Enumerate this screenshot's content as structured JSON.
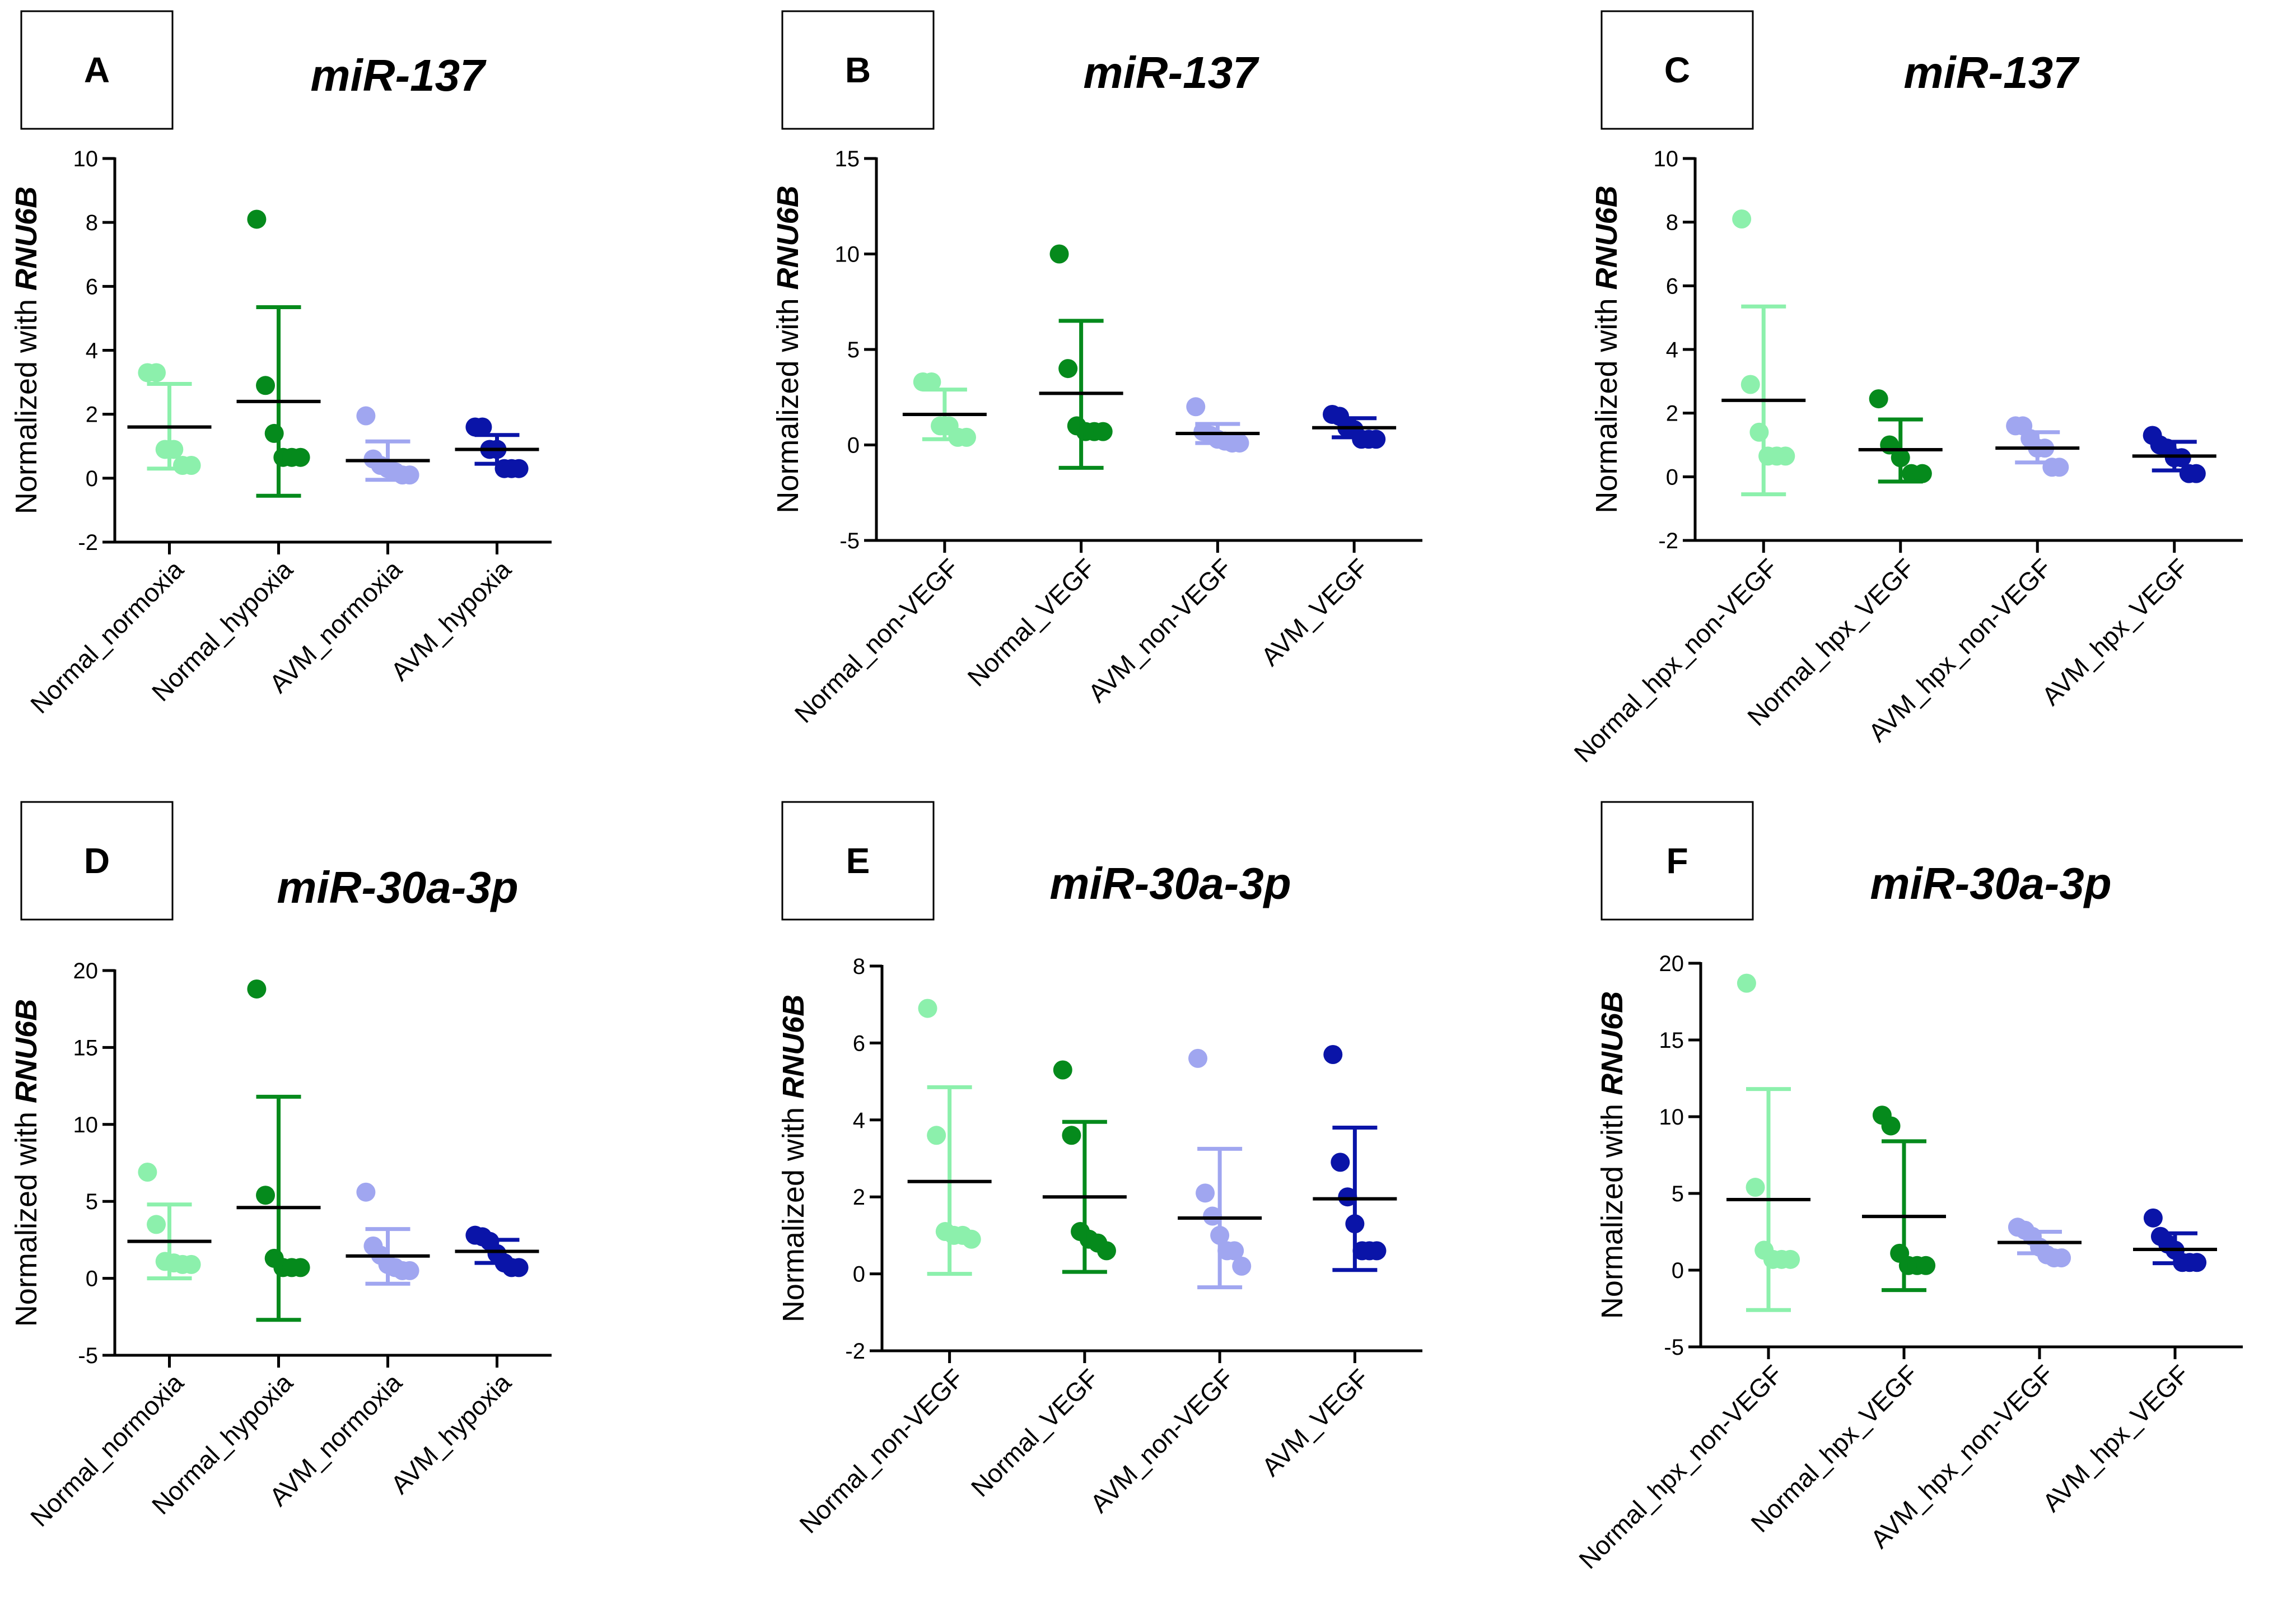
{
  "colors": {
    "normal_light": "#8cf0ac",
    "normal_dark": "#058a1c",
    "avm_light": "#a0a6f0",
    "avm_dark": "#0a14a8",
    "mean_line": "#000000",
    "axis": "#000000"
  },
  "chart_data": [
    {
      "id": "A",
      "type": "scatter",
      "panel_label": "A",
      "title": "miR-137",
      "ylabel_prefix": "Normalized with ",
      "ylabel_gene": "RNU6B",
      "ylim": [
        -2,
        10
      ],
      "yticks": [
        -2,
        0,
        2,
        4,
        6,
        8,
        10
      ],
      "categories": [
        "Normal_normoxia",
        "Normal_hypoxia",
        "AVM_normoxia",
        "AVM_hypoxia"
      ],
      "series": [
        {
          "name": "Normal_normoxia",
          "color": "#8cf0ac",
          "mean": 1.6,
          "sd_low": 0.3,
          "sd_high": 2.95,
          "points": [
            3.3,
            3.3,
            0.9,
            0.9,
            0.4,
            0.4
          ]
        },
        {
          "name": "Normal_hypoxia",
          "color": "#058a1c",
          "mean": 2.4,
          "sd_low": -0.55,
          "sd_high": 5.35,
          "points": [
            8.1,
            2.9,
            1.4,
            0.65,
            0.65,
            0.65
          ]
        },
        {
          "name": "AVM_normoxia",
          "color": "#a0a6f0",
          "mean": 0.55,
          "sd_low": -0.05,
          "sd_high": 1.15,
          "points": [
            1.95,
            0.6,
            0.4,
            0.3,
            0.2,
            0.1,
            0.1
          ]
        },
        {
          "name": "AVM_hypoxia",
          "color": "#0a14a8",
          "mean": 0.9,
          "sd_low": 0.45,
          "sd_high": 1.35,
          "points": [
            1.6,
            1.6,
            0.9,
            0.9,
            0.3,
            0.3,
            0.3
          ]
        }
      ]
    },
    {
      "id": "B",
      "type": "scatter",
      "panel_label": "B",
      "title": "miR-137",
      "ylabel_prefix": "Normalized with ",
      "ylabel_gene": "RNU6B",
      "ylim": [
        -5,
        15
      ],
      "yticks": [
        -5,
        0,
        5,
        10,
        15
      ],
      "categories": [
        "Normal_non-VEGF",
        "Normal_VEGF",
        "AVM_non-VEGF",
        "AVM_VEGF"
      ],
      "series": [
        {
          "name": "Normal_non-VEGF",
          "color": "#8cf0ac",
          "mean": 1.6,
          "sd_low": 0.3,
          "sd_high": 2.9,
          "points": [
            3.3,
            3.3,
            1.0,
            1.0,
            0.4,
            0.4
          ]
        },
        {
          "name": "Normal_VEGF",
          "color": "#058a1c",
          "mean": 2.7,
          "sd_low": -1.2,
          "sd_high": 6.5,
          "points": [
            10.0,
            4.0,
            1.0,
            0.7,
            0.7,
            0.7
          ]
        },
        {
          "name": "AVM_non-VEGF",
          "color": "#a0a6f0",
          "mean": 0.6,
          "sd_low": 0.1,
          "sd_high": 1.1,
          "points": [
            2.0,
            0.7,
            0.5,
            0.3,
            0.2,
            0.1,
            0.1
          ]
        },
        {
          "name": "AVM_VEGF",
          "color": "#0a14a8",
          "mean": 0.9,
          "sd_low": 0.4,
          "sd_high": 1.4,
          "points": [
            1.6,
            1.5,
            0.9,
            0.8,
            0.3,
            0.3,
            0.3
          ]
        }
      ]
    },
    {
      "id": "C",
      "type": "scatter",
      "panel_label": "C",
      "title": "miR-137",
      "ylabel_prefix": "Normalized with ",
      "ylabel_gene": "RNU6B",
      "ylim": [
        -2,
        10
      ],
      "yticks": [
        -2,
        0,
        2,
        4,
        6,
        8,
        10
      ],
      "categories": [
        "Normal_hpx_non-VEGF",
        "Normal_hpx_VEGF",
        "AVM_hpx_non-VEGF",
        "AVM_hpx_VEGF"
      ],
      "series": [
        {
          "name": "Normal_hpx_non-VEGF",
          "color": "#8cf0ac",
          "mean": 2.4,
          "sd_low": -0.55,
          "sd_high": 5.35,
          "points": [
            8.1,
            2.9,
            1.4,
            0.65,
            0.65,
            0.65
          ]
        },
        {
          "name": "Normal_hpx_VEGF",
          "color": "#058a1c",
          "mean": 0.85,
          "sd_low": -0.15,
          "sd_high": 1.8,
          "points": [
            2.45,
            1.0,
            0.6,
            0.1,
            0.1
          ]
        },
        {
          "name": "AVM_hpx_non-VEGF",
          "color": "#a0a6f0",
          "mean": 0.9,
          "sd_low": 0.45,
          "sd_high": 1.4,
          "points": [
            1.6,
            1.6,
            1.2,
            0.9,
            0.9,
            0.3,
            0.3
          ]
        },
        {
          "name": "AVM_hpx_VEGF",
          "color": "#0a14a8",
          "mean": 0.65,
          "sd_low": 0.2,
          "sd_high": 1.1,
          "points": [
            1.3,
            1.0,
            0.9,
            0.6,
            0.6,
            0.1,
            0.1
          ]
        }
      ]
    },
    {
      "id": "D",
      "type": "scatter",
      "panel_label": "D",
      "title": "miR-30a-3p",
      "ylabel_prefix": "Normalized with ",
      "ylabel_gene": "RNU6B",
      "ylim": [
        -5,
        20
      ],
      "yticks": [
        -5,
        0,
        5,
        10,
        15,
        20
      ],
      "categories": [
        "Normal_normoxia",
        "Normal_hypoxia",
        "AVM_normoxia",
        "AVM_hypoxia"
      ],
      "series": [
        {
          "name": "Normal_normoxia",
          "color": "#8cf0ac",
          "mean": 2.4,
          "sd_low": 0.0,
          "sd_high": 4.8,
          "points": [
            6.9,
            3.5,
            1.1,
            1.0,
            0.9,
            0.9
          ]
        },
        {
          "name": "Normal_hypoxia",
          "color": "#058a1c",
          "mean": 4.6,
          "sd_low": -2.7,
          "sd_high": 11.8,
          "points": [
            18.8,
            5.4,
            1.3,
            0.7,
            0.7,
            0.7
          ]
        },
        {
          "name": "AVM_normoxia",
          "color": "#a0a6f0",
          "mean": 1.45,
          "sd_low": -0.35,
          "sd_high": 3.2,
          "points": [
            5.6,
            2.1,
            1.5,
            0.9,
            0.7,
            0.5,
            0.5
          ]
        },
        {
          "name": "AVM_hypoxia",
          "color": "#0a14a8",
          "mean": 1.75,
          "sd_low": 1.0,
          "sd_high": 2.5,
          "points": [
            2.8,
            2.7,
            2.4,
            1.6,
            1.0,
            0.7,
            0.7
          ]
        }
      ]
    },
    {
      "id": "E",
      "type": "scatter",
      "panel_label": "E",
      "title": "miR-30a-3p",
      "ylabel_prefix": "Normalized with ",
      "ylabel_gene": "RNU6B",
      "ylim": [
        -2,
        8
      ],
      "yticks": [
        -2,
        0,
        2,
        4,
        6,
        8
      ],
      "categories": [
        "Normal_non-VEGF",
        "Normal_VEGF",
        "AVM_non-VEGF",
        "AVM_VEGF"
      ],
      "series": [
        {
          "name": "Normal_non-VEGF",
          "color": "#8cf0ac",
          "mean": 2.4,
          "sd_low": 0.0,
          "sd_high": 4.85,
          "points": [
            6.9,
            3.6,
            1.1,
            1.0,
            1.0,
            0.9
          ]
        },
        {
          "name": "Normal_VEGF",
          "color": "#058a1c",
          "mean": 2.0,
          "sd_low": 0.05,
          "sd_high": 3.95,
          "points": [
            5.3,
            3.6,
            1.1,
            0.9,
            0.8,
            0.6
          ]
        },
        {
          "name": "AVM_non-VEGF",
          "color": "#a0a6f0",
          "mean": 1.45,
          "sd_low": -0.35,
          "sd_high": 3.25,
          "points": [
            5.6,
            2.1,
            1.5,
            1.0,
            0.6,
            0.6,
            0.2
          ]
        },
        {
          "name": "AVM_VEGF",
          "color": "#0a14a8",
          "mean": 1.95,
          "sd_low": 0.1,
          "sd_high": 3.8,
          "points": [
            5.7,
            2.9,
            2.0,
            1.3,
            0.6,
            0.6,
            0.6
          ]
        }
      ]
    },
    {
      "id": "F",
      "type": "scatter",
      "panel_label": "F",
      "title": "miR-30a-3p",
      "ylabel_prefix": "Normalized with ",
      "ylabel_gene": "RNU6B",
      "ylim": [
        -5,
        20
      ],
      "yticks": [
        -5,
        0,
        5,
        10,
        15,
        20
      ],
      "categories": [
        "Normal_hpx_non-VEGF",
        "Normal_hpx_VEGF",
        "AVM_hpx_non-VEGF",
        "AVM_hpx_VEGF"
      ],
      "series": [
        {
          "name": "Normal_hpx_non-VEGF",
          "color": "#8cf0ac",
          "mean": 4.6,
          "sd_low": -2.6,
          "sd_high": 11.8,
          "points": [
            18.7,
            5.4,
            1.3,
            0.7,
            0.7,
            0.7
          ]
        },
        {
          "name": "Normal_hpx_VEGF",
          "color": "#058a1c",
          "mean": 3.5,
          "sd_low": -1.3,
          "sd_high": 8.4,
          "points": [
            10.1,
            9.4,
            1.1,
            0.3,
            0.3,
            0.3
          ]
        },
        {
          "name": "AVM_hpx_non-VEGF",
          "color": "#a0a6f0",
          "mean": 1.8,
          "sd_low": 1.1,
          "sd_high": 2.5,
          "points": [
            2.8,
            2.6,
            2.2,
            1.5,
            1.0,
            0.8,
            0.8
          ]
        },
        {
          "name": "AVM_hpx_VEGF",
          "color": "#0a14a8",
          "mean": 1.35,
          "sd_low": 0.45,
          "sd_high": 2.4,
          "points": [
            3.4,
            2.2,
            1.7,
            1.3,
            0.5,
            0.5,
            0.5
          ]
        }
      ]
    }
  ]
}
